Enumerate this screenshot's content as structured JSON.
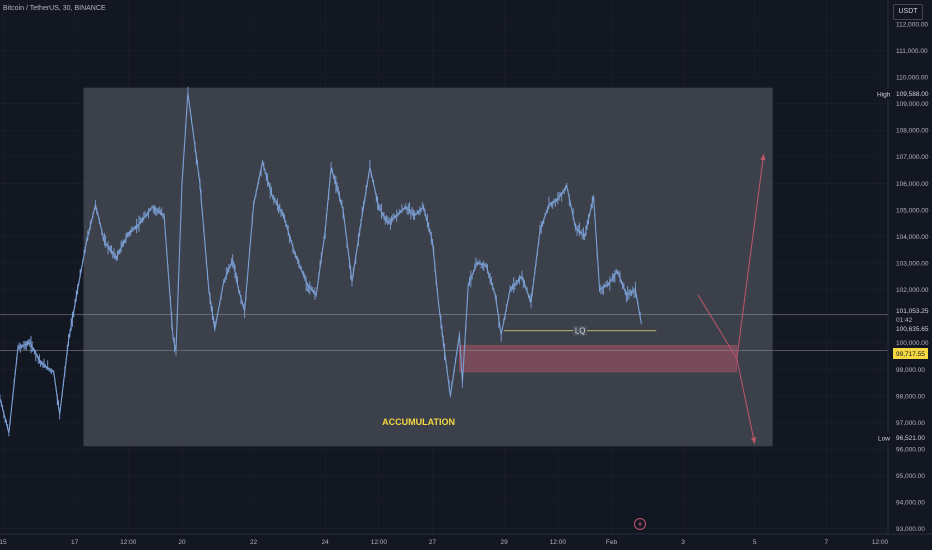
{
  "header": {
    "symbol": "Bitcoin / TetherUS, 30, BINANCE",
    "currency": "USDT"
  },
  "colors": {
    "background": "#131722",
    "grid": "#1e222d",
    "candle": "#7b9fd4",
    "zone": "#4a4f5a",
    "demand": "#c0566a",
    "annotation": "#f5d742",
    "axis_text": "#b2b5be",
    "arrow": "#c0566a",
    "lq_line": "#e8d77a"
  },
  "chart_data": {
    "type": "line",
    "title": "",
    "yticks": [
      112000,
      111000,
      110000,
      109000,
      108000,
      107000,
      106000,
      105000,
      104000,
      103000,
      102000,
      101000,
      100000,
      99000,
      98000,
      97000,
      96000,
      95000,
      94000,
      93000
    ],
    "ylim": [
      92800,
      112900
    ],
    "x_domain": [
      "Jan 14 22:00",
      "Feb 8 12:00"
    ],
    "xticks": [
      {
        "label": "15",
        "t": "Jan 15 00:00"
      },
      {
        "label": "17",
        "t": "Jan 17 00:00"
      },
      {
        "label": "12:00",
        "t": "Jan 18 12:00"
      },
      {
        "label": "20",
        "t": "Jan 20 00:00"
      },
      {
        "label": "22",
        "t": "Jan 22 00:00"
      },
      {
        "label": "24",
        "t": "Jan 24 00:00"
      },
      {
        "label": "12:00",
        "t": "Jan 25 12:00"
      },
      {
        "label": "27",
        "t": "Jan 27 00:00"
      },
      {
        "label": "29",
        "t": "Jan 29 00:00"
      },
      {
        "label": "12:00",
        "t": "Jan 30 12:00"
      },
      {
        "label": "Feb",
        "t": "Feb 1 00:00"
      },
      {
        "label": "3",
        "t": "Feb 3 00:00"
      },
      {
        "label": "5",
        "t": "Feb 5 00:00"
      },
      {
        "label": "7",
        "t": "Feb 7 00:00"
      },
      {
        "label": "12:00",
        "t": "Feb 8 12:00"
      }
    ],
    "series": [
      {
        "values": [
          [
            "Jan 14 22:00",
            97900
          ],
          [
            "Jan 15 04:00",
            96600
          ],
          [
            "Jan 15 10:00",
            99800
          ],
          [
            "Jan 15 18:00",
            100000
          ],
          [
            "Jan 16 02:00",
            99200
          ],
          [
            "Jan 16 10:00",
            98900
          ],
          [
            "Jan 16 14:00",
            97300
          ],
          [
            "Jan 16 20:00",
            100100
          ],
          [
            "Jan 17 02:00",
            102000
          ],
          [
            "Jan 17 08:00",
            103800
          ],
          [
            "Jan 17 14:00",
            105200
          ],
          [
            "Jan 17 20:00",
            103800
          ],
          [
            "Jan 18 04:00",
            103200
          ],
          [
            "Jan 18 12:00",
            104100
          ],
          [
            "Jan 18 20:00",
            104500
          ],
          [
            "Jan 19 04:00",
            105100
          ],
          [
            "Jan 19 12:00",
            104800
          ],
          [
            "Jan 19 18:00",
            100200
          ],
          [
            "Jan 19 20:00",
            99700
          ],
          [
            "Jan 20 00:00",
            106000
          ],
          [
            "Jan 20 04:00",
            109400
          ],
          [
            "Jan 20 12:00",
            106000
          ],
          [
            "Jan 20 18:00",
            102000
          ],
          [
            "Jan 20 22:00",
            100500
          ],
          [
            "Jan 21 04:00",
            102300
          ],
          [
            "Jan 21 10:00",
            103100
          ],
          [
            "Jan 21 14:00",
            102000
          ],
          [
            "Jan 21 18:00",
            101200
          ],
          [
            "Jan 22 00:00",
            105200
          ],
          [
            "Jan 22 06:00",
            106800
          ],
          [
            "Jan 22 12:00",
            105600
          ],
          [
            "Jan 22 20:00",
            104800
          ],
          [
            "Jan 23 04:00",
            103300
          ],
          [
            "Jan 23 12:00",
            102200
          ],
          [
            "Jan 23 18:00",
            101800
          ],
          [
            "Jan 24 00:00",
            104200
          ],
          [
            "Jan 24 04:00",
            106600
          ],
          [
            "Jan 24 12:00",
            105000
          ],
          [
            "Jan 24 18:00",
            102300
          ],
          [
            "Jan 25 00:00",
            104500
          ],
          [
            "Jan 25 06:00",
            106600
          ],
          [
            "Jan 25 12:00",
            105100
          ],
          [
            "Jan 25 18:00",
            104500
          ],
          [
            "Jan 26 00:00",
            104800
          ],
          [
            "Jan 26 06:00",
            105100
          ],
          [
            "Jan 26 12:00",
            104800
          ],
          [
            "Jan 26 18:00",
            105100
          ],
          [
            "Jan 27 00:00",
            103800
          ],
          [
            "Jan 27 04:00",
            101500
          ],
          [
            "Jan 27 08:00",
            99700
          ],
          [
            "Jan 27 12:00",
            98000
          ],
          [
            "Jan 27 18:00",
            100300
          ],
          [
            "Jan 27 20:00",
            98500
          ],
          [
            "Jan 28 00:00",
            102200
          ],
          [
            "Jan 28 06:00",
            103000
          ],
          [
            "Jan 28 12:00",
            102900
          ],
          [
            "Jan 28 18:00",
            101800
          ],
          [
            "Jan 28 22:00",
            100300
          ],
          [
            "Jan 29 04:00",
            102000
          ],
          [
            "Jan 29 12:00",
            102500
          ],
          [
            "Jan 29 18:00",
            101500
          ],
          [
            "Jan 30 00:00",
            104200
          ],
          [
            "Jan 30 06:00",
            105200
          ],
          [
            "Jan 30 12:00",
            105400
          ],
          [
            "Jan 30 18:00",
            105900
          ],
          [
            "Jan 31 00:00",
            104300
          ],
          [
            "Jan 31 06:00",
            104000
          ],
          [
            "Jan 31 12:00",
            105500
          ],
          [
            "Jan 31 16:00",
            102000
          ],
          [
            "Jan 31 22:00",
            102200
          ],
          [
            "Feb 1 04:00",
            102700
          ],
          [
            "Feb 1 10:00",
            101800
          ],
          [
            "Feb 1 16:00",
            102000
          ],
          [
            "Feb 1 20:00",
            100700
          ]
        ]
      }
    ],
    "last_price": "101,053.25",
    "countdown": "01:42",
    "last_close_label": "100,635.65",
    "high": {
      "label": "High",
      "value": "109,588.00"
    },
    "low": {
      "label": "Low",
      "value": "96,521.00"
    },
    "demand_level": "99,717.55",
    "annotations": {
      "accumulation": "ACCUMULATION",
      "lq": "LQ",
      "accumulation_box": {
        "x0": "Jan 17 06:00",
        "x1": "Feb 5 12:00",
        "y0": 96100,
        "y1": 109600
      },
      "demand_zone": {
        "x0": "Jan 27 18:00",
        "x1": "Feb 4 12:00",
        "y0": 98900,
        "y1": 99900
      },
      "lq_line": {
        "x0": "Jan 29 00:00",
        "x1": "Feb 2 06:00",
        "y": 100450
      },
      "projection_down": [
        [
          "Feb 3 10:00",
          101800
        ],
        [
          "Feb 4 12:00",
          99400
        ],
        [
          "Feb 5 00:00",
          96200
        ]
      ],
      "projection_up": [
        [
          "Feb 4 12:00",
          99400
        ],
        [
          "Feb 5 06:00",
          107100
        ]
      ]
    }
  }
}
